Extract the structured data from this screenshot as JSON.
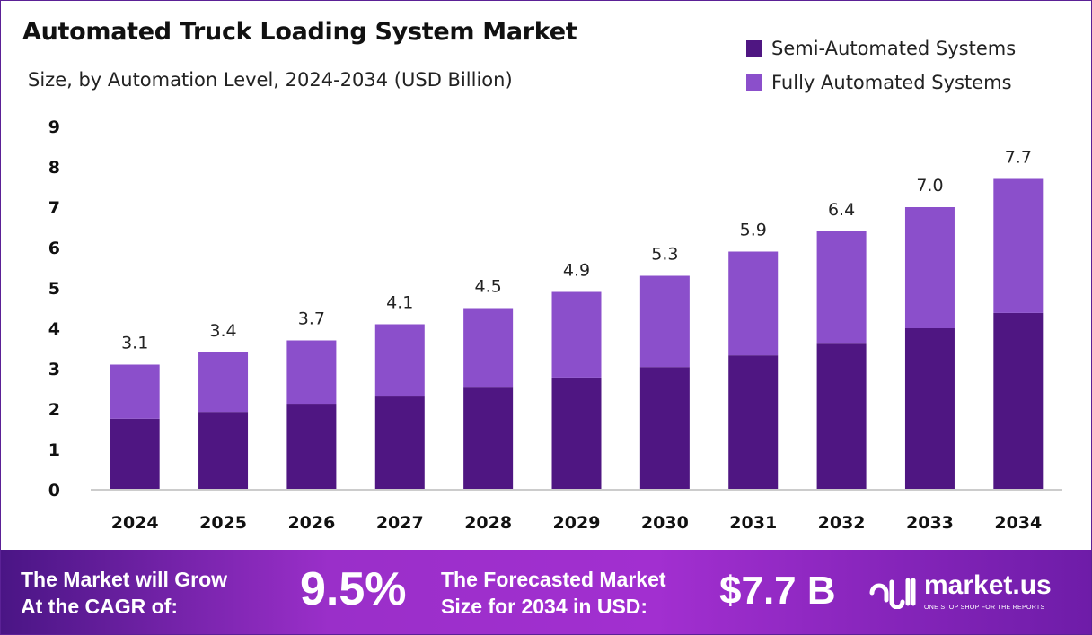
{
  "chart_data": {
    "type": "bar",
    "stacked": true,
    "title": "Automated Truck Loading System Market",
    "subtitle": "Size, by Automation Level, 2024-2034 (USD Billion)",
    "categories": [
      "2024",
      "2025",
      "2026",
      "2027",
      "2028",
      "2029",
      "2030",
      "2031",
      "2032",
      "2033",
      "2034"
    ],
    "series": [
      {
        "name": "Semi-Automated Systems",
        "color": "#4f1682",
        "values": [
          1.76,
          1.93,
          2.11,
          2.31,
          2.53,
          2.78,
          3.04,
          3.33,
          3.64,
          4.0,
          4.38
        ]
      },
      {
        "name": "Fully Automated Systems",
        "color": "#8b4fcb",
        "values": [
          1.34,
          1.47,
          1.59,
          1.79,
          1.97,
          2.12,
          2.26,
          2.57,
          2.76,
          3.0,
          3.32
        ]
      }
    ],
    "totals": [
      "3.1",
      "3.4",
      "3.7",
      "4.1",
      "4.5",
      "4.9",
      "5.3",
      "5.9",
      "6.4",
      "7.0",
      "7.7"
    ],
    "ylim": [
      0,
      9
    ],
    "yticks": [
      "0",
      "1",
      "2",
      "3",
      "4",
      "5",
      "6",
      "7",
      "8",
      "9"
    ],
    "grid": false,
    "legend_position": "top-right"
  },
  "footer": {
    "cagr_label_line1": "The Market will Grow",
    "cagr_label_line2": "At the CAGR of:",
    "cagr_value": "9.5%",
    "forecast_label_line1": "The Forecasted Market",
    "forecast_label_line2": "Size for 2034 in USD:",
    "forecast_value": "$7.7 B",
    "logo_name": "market.us",
    "logo_tagline": "ONE STOP SHOP FOR THE REPORTS"
  }
}
